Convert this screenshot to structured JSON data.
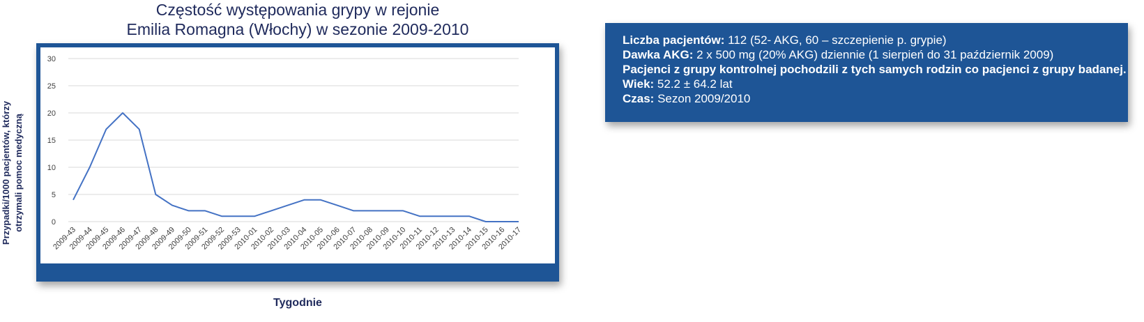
{
  "chart_title": {
    "line1": "Częstość występowania grypy w rejonie",
    "line2": "Emilia Romagna (Włochy) w sezonie 2009-2010"
  },
  "info": [
    {
      "label": "Liczba pacjentów:",
      "text": " 112 (52- AKG, 60 – szczepienie p. grypie)"
    },
    {
      "label": "Dawka AKG:",
      "text": " 2 x 500 mg (20% AKG) dziennie (1 sierpień do 31 październik 2009)"
    },
    {
      "label": "Pacjenci z grupy kontrolnej pochodzili z tych samych rodzin co pacjenci z grupy badanej.",
      "text": ""
    },
    {
      "label": "Wiek:",
      "text": " 52.2 ± 64.2 lat"
    },
    {
      "label": "Czas:",
      "text": " Sezon 2009/2010"
    }
  ],
  "colors": {
    "frame": "#1e5596",
    "line": "#4472c4",
    "title": "#1f2a5c"
  },
  "chart_data": {
    "type": "line",
    "title": "Częstość występowania grypy w rejonie Emilia Romagna (Włochy) w sezonie 2009-2010",
    "xlabel": "Tygodnie",
    "ylabel_lines": [
      "Przypadki/1000 pacjentów, którzy",
      "otrzymali pomoc medyczną"
    ],
    "ylabel": "Przypadki/1000 pacjentów, którzy otrzymali pomoc medyczną",
    "ylim": [
      0,
      30
    ],
    "yticks": [
      0,
      5,
      10,
      15,
      20,
      25,
      30
    ],
    "grid": true,
    "categories": [
      "2009-43",
      "2009-44",
      "2009-45",
      "2009-46",
      "2009-47",
      "2009-48",
      "2009-49",
      "2009-50",
      "2009-51",
      "2009-52",
      "2009-53",
      "2010-01",
      "2010-02",
      "2010-03",
      "2010-04",
      "2010-05",
      "2010-06",
      "2010-07",
      "2010-08",
      "2010-09",
      "2010-10",
      "2010-11",
      "2010-12",
      "2010-13",
      "2010-14",
      "2010-15",
      "2010-16",
      "2010-17"
    ],
    "series": [
      {
        "values": [
          4,
          10,
          17,
          20,
          17,
          5,
          3,
          2,
          2,
          1,
          1,
          1,
          2,
          3,
          4,
          4,
          3,
          2,
          2,
          2,
          2,
          1,
          1,
          1,
          1,
          0,
          0,
          0
        ]
      }
    ]
  }
}
